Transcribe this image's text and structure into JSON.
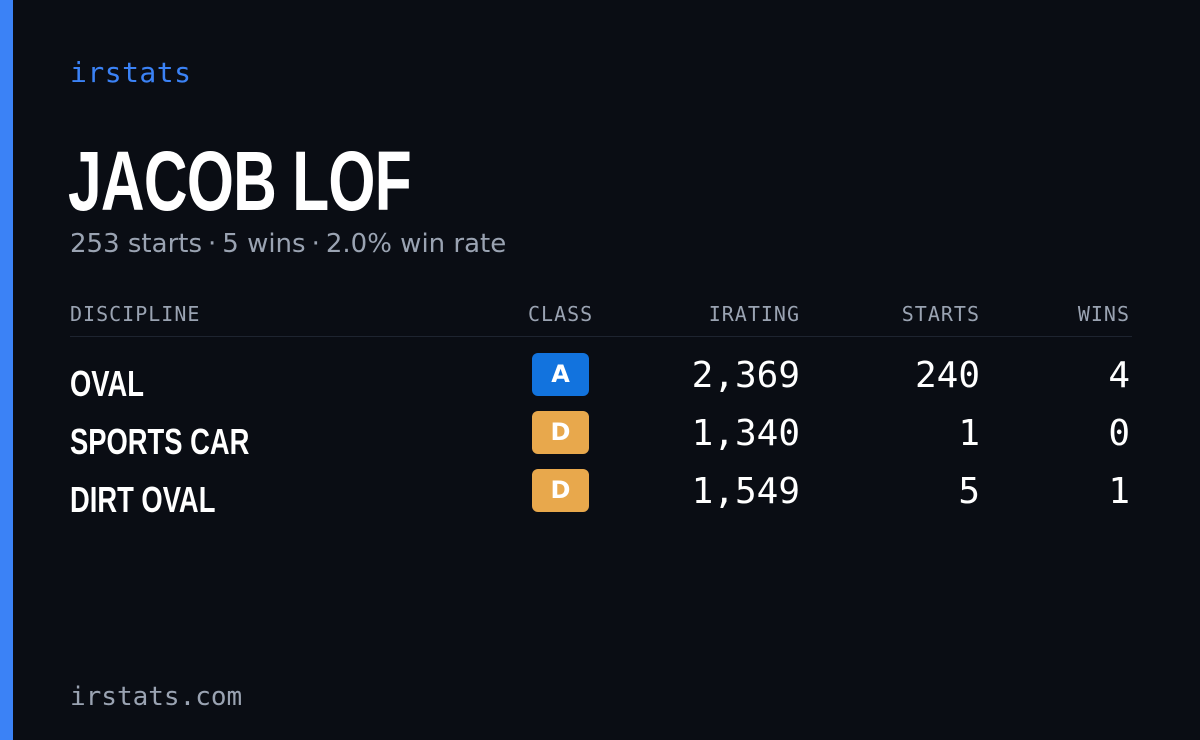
{
  "brand": "irstats",
  "driver": {
    "name": "JACOB LOF",
    "summary": {
      "starts": "253 starts",
      "wins": "5 wins",
      "win_rate": "2.0% win rate",
      "separator": "·"
    }
  },
  "table": {
    "headers": {
      "discipline": "DISCIPLINE",
      "class": "CLASS",
      "irating": "IRATING",
      "starts": "STARTS",
      "wins": "WINS"
    },
    "rows": [
      {
        "discipline": "OVAL",
        "class": "A",
        "class_color": "#1273de",
        "irating": "2,369",
        "starts": "240",
        "wins": "4"
      },
      {
        "discipline": "SPORTS CAR",
        "class": "D",
        "class_color": "#e8a84c",
        "irating": "1,340",
        "starts": "1",
        "wins": "0"
      },
      {
        "discipline": "DIRT OVAL",
        "class": "D",
        "class_color": "#e8a84c",
        "irating": "1,549",
        "starts": "5",
        "wins": "1"
      }
    ]
  },
  "footer": "irstats.com",
  "colors": {
    "background": "#0a0d14",
    "accent": "#3b82f6",
    "muted_text": "#9aa3b2",
    "class_a": "#1273de",
    "class_d": "#e8a84c"
  }
}
